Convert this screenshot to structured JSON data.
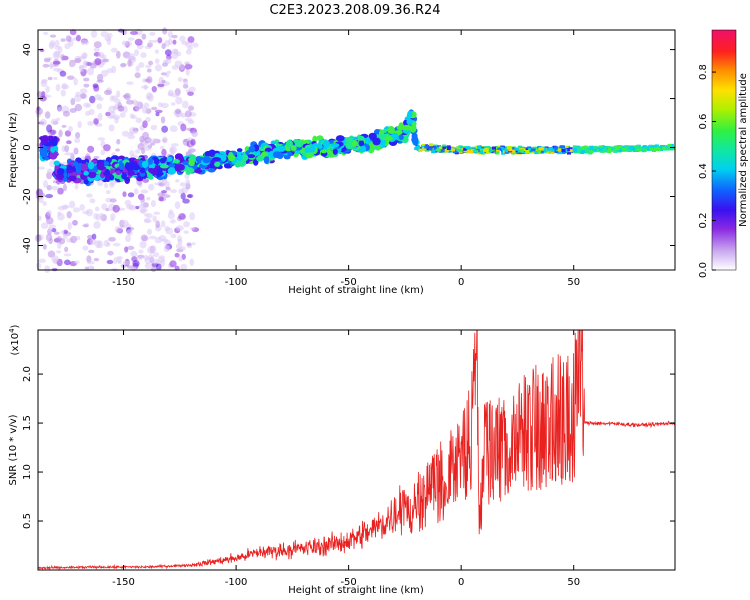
{
  "title": "C2E3.2023.208.09.36.R24",
  "colors": {
    "series": "#e8201e",
    "spectral_low": "#8a2be2"
  },
  "chart_data": [
    {
      "type": "heatmap",
      "xlabel": "Height of straight line (km)",
      "ylabel": "Frequency (Hz)",
      "xlim": [
        -188,
        95
      ],
      "ylim": [
        -50,
        48
      ],
      "xticks": [
        "-150",
        "-100",
        "-50",
        "0",
        "50"
      ],
      "yticks": [
        "-40",
        "-20",
        "0",
        "20",
        "40"
      ],
      "colorbar": {
        "label": "Normalized spectral amplitude",
        "range": [
          0,
          0.97
        ],
        "ticks": [
          "0.0",
          "0.2",
          "0.4",
          "0.6",
          "0.8"
        ]
      },
      "ridge": [
        {
          "x": -180,
          "y": -10
        },
        {
          "x": -150,
          "y": -9
        },
        {
          "x": -120,
          "y": -7
        },
        {
          "x": -100,
          "y": -4
        },
        {
          "x": -80,
          "y": -1
        },
        {
          "x": -60,
          "y": 0
        },
        {
          "x": -40,
          "y": 2
        },
        {
          "x": -25,
          "y": 6
        },
        {
          "x": -22,
          "y": 14
        },
        {
          "x": -20,
          "y": 0
        },
        {
          "x": 0,
          "y": -1
        },
        {
          "x": 50,
          "y": -1
        },
        {
          "x": 95,
          "y": 0
        }
      ]
    },
    {
      "type": "line",
      "xlabel": "Height of straight line (km)",
      "ylabel": "SNR (10 * v/v)",
      "scale_label": "(x10",
      "scale_exp": "4",
      "scale_close": ")",
      "xlim": [
        -188,
        95
      ],
      "ylim": [
        0,
        2.45
      ],
      "xticks": [
        "-150",
        "-100",
        "-50",
        "0",
        "50"
      ],
      "yticks": [
        "0.5",
        "1.0",
        "1.5",
        "2.0"
      ],
      "series": [
        {
          "x": [
            -188,
            -160,
            -140,
            -120,
            -100,
            -90,
            -80,
            -70,
            -60,
            -50,
            -40,
            -30,
            -25,
            -22,
            -20,
            -10,
            0,
            5,
            7,
            8,
            10,
            20,
            30,
            40,
            50,
            52,
            55,
            60,
            80,
            95
          ],
          "y": [
            0.02,
            0.03,
            0.03,
            0.05,
            0.12,
            0.18,
            0.2,
            0.22,
            0.25,
            0.3,
            0.4,
            0.55,
            0.75,
            0.5,
            0.7,
            0.9,
            1.1,
            1.6,
            2.3,
            0.4,
            1.2,
            1.3,
            1.45,
            1.55,
            1.6,
            2.4,
            1.5,
            1.5,
            1.48,
            1.5
          ]
        }
      ]
    }
  ]
}
